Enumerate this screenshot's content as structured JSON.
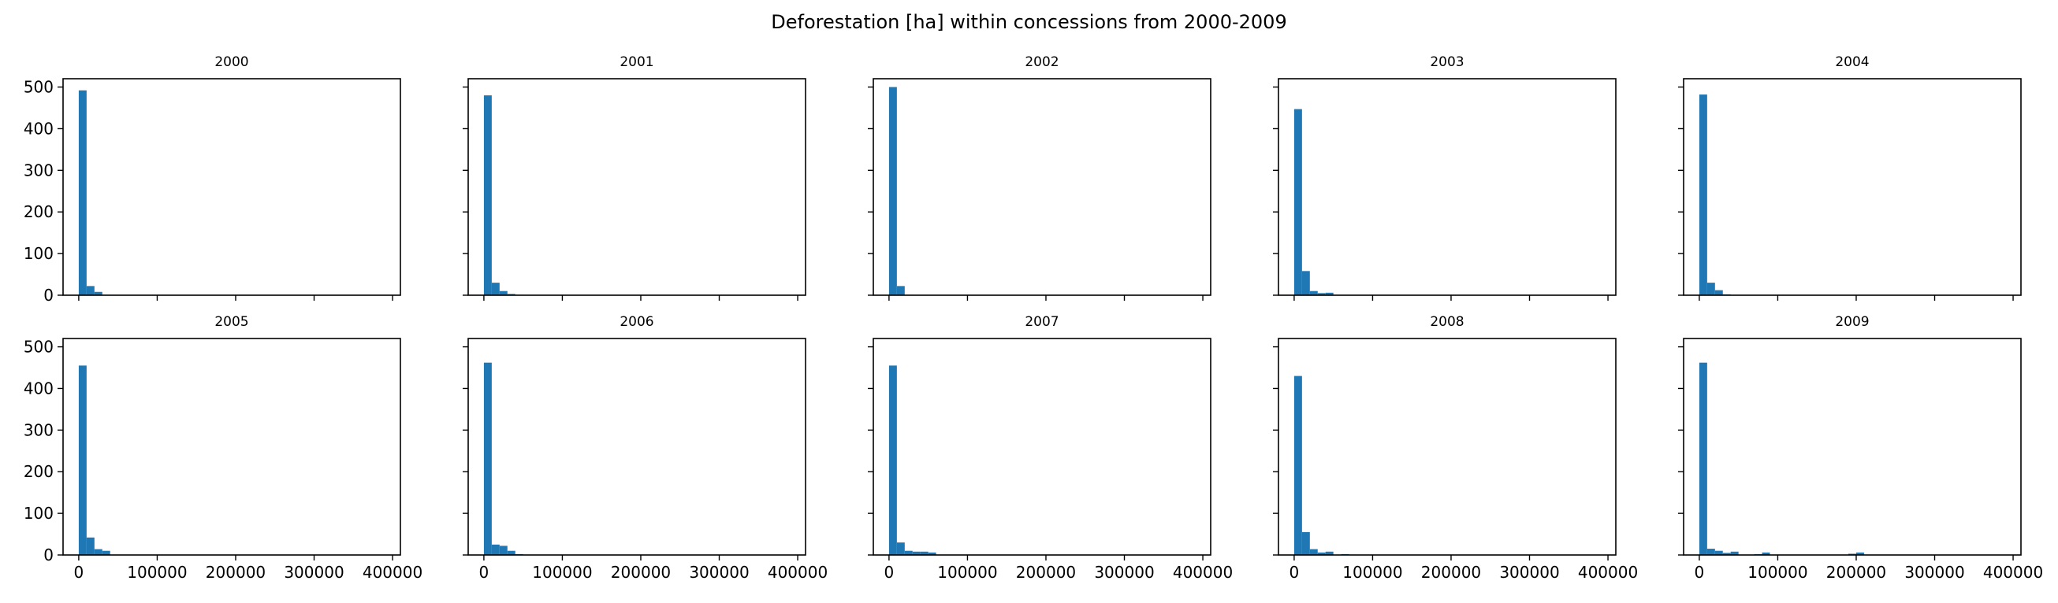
{
  "figure": {
    "title": "Deforestation [ha] within concessions from 2000-2009"
  },
  "colors": {
    "bar": "#1f77b4",
    "axis": "#000000",
    "background": "#ffffff"
  },
  "chart_data": {
    "type": "bar",
    "layout": {
      "rows": 2,
      "cols": 5,
      "sharex": true,
      "sharey": true
    },
    "bin_width": 10000,
    "xlim": [
      -20000,
      410000
    ],
    "ylim": [
      0,
      520
    ],
    "xticks": [
      0,
      100000,
      200000,
      300000,
      400000
    ],
    "xtick_labels": [
      "0",
      "100000",
      "200000",
      "300000",
      "400000"
    ],
    "yticks": [
      0,
      100,
      200,
      300,
      400,
      500
    ],
    "ytick_labels": [
      "0",
      "100",
      "200",
      "300",
      "400",
      "500"
    ],
    "grid": false,
    "subplots": [
      {
        "title": "2000",
        "bin_starts": [
          0,
          10000,
          20000,
          30000
        ],
        "counts": [
          492,
          22,
          8,
          1
        ]
      },
      {
        "title": "2001",
        "bin_starts": [
          0,
          10000,
          20000,
          30000,
          40000
        ],
        "counts": [
          480,
          30,
          10,
          3,
          1
        ]
      },
      {
        "title": "2002",
        "bin_starts": [
          0,
          10000,
          20000
        ],
        "counts": [
          500,
          22,
          1
        ]
      },
      {
        "title": "2003",
        "bin_starts": [
          0,
          10000,
          20000,
          30000,
          40000
        ],
        "counts": [
          447,
          58,
          10,
          5,
          6
        ]
      },
      {
        "title": "2004",
        "bin_starts": [
          0,
          10000,
          20000,
          30000
        ],
        "counts": [
          482,
          30,
          12,
          2
        ]
      },
      {
        "title": "2005",
        "bin_starts": [
          0,
          10000,
          20000,
          30000
        ],
        "counts": [
          455,
          42,
          14,
          10
        ]
      },
      {
        "title": "2006",
        "bin_starts": [
          0,
          10000,
          20000,
          30000,
          40000
        ],
        "counts": [
          462,
          25,
          22,
          10,
          2
        ]
      },
      {
        "title": "2007",
        "bin_starts": [
          0,
          10000,
          20000,
          30000,
          40000,
          50000
        ],
        "counts": [
          455,
          30,
          10,
          8,
          8,
          6
        ]
      },
      {
        "title": "2008",
        "bin_starts": [
          0,
          10000,
          20000,
          30000,
          40000,
          60000,
          70000
        ],
        "counts": [
          430,
          55,
          14,
          6,
          8,
          2,
          1
        ]
      },
      {
        "title": "2009",
        "bin_starts": [
          0,
          10000,
          20000,
          30000,
          40000,
          70000,
          80000,
          190000,
          200000
        ],
        "counts": [
          462,
          15,
          10,
          5,
          8,
          2,
          6,
          3,
          6
        ]
      }
    ]
  }
}
